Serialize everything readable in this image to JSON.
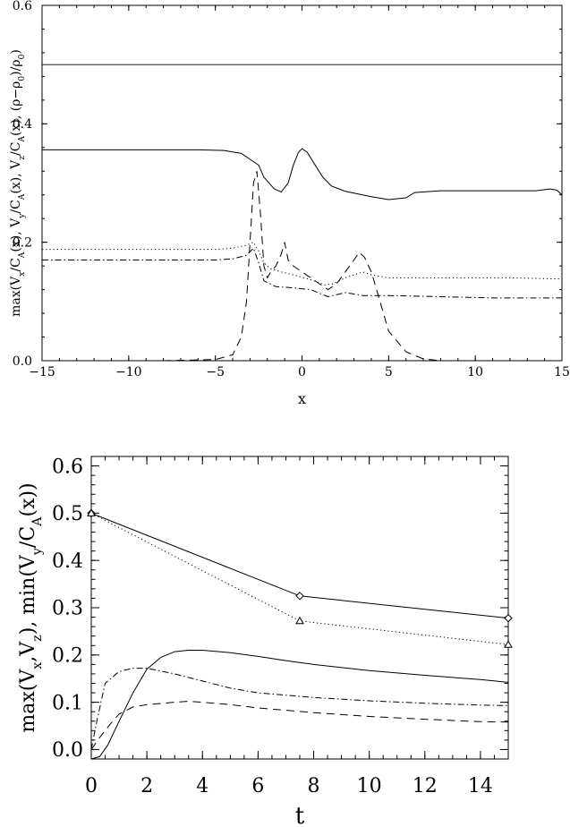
{
  "chart_data": [
    {
      "type": "line",
      "xlabel": "x",
      "ylabel": "max(V_x/C_A(x), V_y/C_A(x), V_z/C_A(x), (ρ−ρ_0)/ρ_0)",
      "xlim": [
        -15,
        15
      ],
      "ylim": [
        0,
        0.6
      ],
      "xticks": [
        "−15",
        "−10",
        "−5",
        "0",
        "5",
        "10",
        "15"
      ],
      "yticks": [
        "0.0",
        "0.2",
        "0.4",
        "0.6"
      ],
      "series": [
        {
          "style": "solid",
          "x": [
            -15,
            -12,
            -6,
            -4.5,
            -3.5,
            -3,
            -2.5,
            -2.2,
            -1.6,
            -1.2,
            -0.8,
            -0.5,
            -0.2,
            0,
            0.3,
            0.7,
            1.2,
            1.7,
            2.5,
            4,
            5,
            6,
            6.5,
            8,
            10,
            12,
            13.5,
            14.3,
            14.7,
            15
          ],
          "y": [
            0.356,
            0.356,
            0.356,
            0.355,
            0.35,
            0.34,
            0.33,
            0.31,
            0.29,
            0.285,
            0.3,
            0.33,
            0.352,
            0.358,
            0.352,
            0.333,
            0.31,
            0.295,
            0.286,
            0.277,
            0.272,
            0.275,
            0.284,
            0.287,
            0.287,
            0.287,
            0.287,
            0.29,
            0.288,
            0.28
          ]
        },
        {
          "style": "solid-thin",
          "x": [
            -15,
            15
          ],
          "y": [
            0.5,
            0.5
          ]
        },
        {
          "style": "dotted",
          "x": [
            -15,
            -10,
            -5,
            -4,
            -3.2,
            -2.8,
            -2.5,
            -2.2,
            -1.8,
            -1.2,
            -0.5,
            0.5,
            1.3,
            1.8,
            2.5,
            3.5,
            4,
            5,
            6,
            8,
            10,
            12,
            15
          ],
          "y": [
            0.188,
            0.188,
            0.188,
            0.19,
            0.195,
            0.2,
            0.185,
            0.165,
            0.155,
            0.15,
            0.145,
            0.137,
            0.128,
            0.13,
            0.14,
            0.15,
            0.145,
            0.14,
            0.14,
            0.14,
            0.14,
            0.14,
            0.138
          ]
        },
        {
          "style": "dash-dot",
          "x": [
            -15,
            -10,
            -5,
            -4,
            -3.2,
            -2.8,
            -2.5,
            -2.2,
            -1.5,
            -0.5,
            0.5,
            1.5,
            2.5,
            3.5,
            5,
            8,
            11,
            15
          ],
          "y": [
            0.17,
            0.17,
            0.17,
            0.172,
            0.178,
            0.19,
            0.165,
            0.135,
            0.125,
            0.123,
            0.12,
            0.108,
            0.115,
            0.11,
            0.11,
            0.108,
            0.106,
            0.106
          ]
        },
        {
          "style": "dashed",
          "x": [
            -15,
            -8,
            -5,
            -4,
            -3.5,
            -3.2,
            -3,
            -2.8,
            -2.6,
            -2.4,
            -2.2,
            -2,
            -1.8,
            -1.5,
            -1.2,
            -1,
            -0.8,
            -0.5,
            0,
            0.5,
            1,
            1.5,
            2,
            2.5,
            3,
            3.3,
            3.6,
            4,
            4.5,
            5,
            6,
            7,
            8,
            15
          ],
          "y": [
            0,
            0,
            0.002,
            0.01,
            0.04,
            0.1,
            0.2,
            0.3,
            0.32,
            0.25,
            0.16,
            0.14,
            0.15,
            0.16,
            0.18,
            0.2,
            0.17,
            0.16,
            0.15,
            0.14,
            0.13,
            0.12,
            0.13,
            0.15,
            0.17,
            0.183,
            0.175,
            0.15,
            0.1,
            0.05,
            0.015,
            0.003,
            0,
            0
          ]
        }
      ]
    },
    {
      "type": "line",
      "xlabel": "t",
      "ylabel": "max(V_x,V_z), min(V_y/C_A(x))",
      "xlim": [
        0,
        15
      ],
      "ylim": [
        -0.02,
        0.62
      ],
      "xticks": [
        "0",
        "2",
        "4",
        "6",
        "8",
        "10",
        "12",
        "14"
      ],
      "yticks": [
        "0.0",
        "0.1",
        "0.2",
        "0.3",
        "0.4",
        "0.5",
        "0.6"
      ],
      "series": [
        {
          "style": "solid",
          "marker": "diamond",
          "x": [
            0,
            7.5,
            15
          ],
          "y": [
            0.5,
            0.325,
            0.278
          ]
        },
        {
          "style": "dotted",
          "marker": "triangle",
          "x": [
            0,
            7.5,
            15
          ],
          "y": [
            0.5,
            0.272,
            0.222
          ]
        },
        {
          "style": "solid",
          "x": [
            0,
            0.3,
            0.6,
            1,
            1.5,
            2,
            2.5,
            3,
            3.5,
            4,
            5,
            6,
            7,
            8,
            10,
            12,
            14,
            15
          ],
          "y": [
            -0.02,
            -0.015,
            0.01,
            0.06,
            0.12,
            0.17,
            0.195,
            0.207,
            0.21,
            0.21,
            0.205,
            0.197,
            0.188,
            0.18,
            0.167,
            0.157,
            0.148,
            0.142
          ]
        },
        {
          "style": "dash-dot",
          "x": [
            0,
            0.2,
            0.5,
            1,
            1.5,
            2,
            3,
            4,
            5,
            6,
            7,
            8,
            10,
            12,
            14,
            15
          ],
          "y": [
            0,
            0.06,
            0.14,
            0.165,
            0.172,
            0.172,
            0.16,
            0.145,
            0.13,
            0.12,
            0.115,
            0.11,
            0.103,
            0.098,
            0.094,
            0.093
          ]
        },
        {
          "style": "dashed",
          "x": [
            0,
            0.3,
            0.7,
            1,
            1.5,
            2,
            3,
            3.5,
            4,
            5,
            6,
            7,
            8,
            10,
            12,
            14,
            15
          ],
          "y": [
            0,
            0.025,
            0.055,
            0.075,
            0.09,
            0.095,
            0.1,
            0.102,
            0.1,
            0.095,
            0.088,
            0.083,
            0.078,
            0.07,
            0.064,
            0.059,
            0.058
          ]
        }
      ]
    }
  ]
}
